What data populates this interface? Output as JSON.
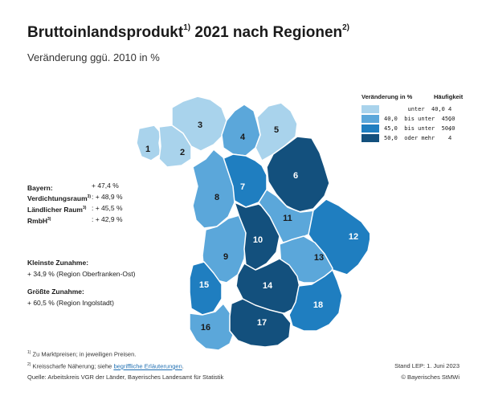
{
  "title": {
    "main": "Bruttoinlandsprodukt",
    "sup1": "1)",
    "rest": " 2021 nach Regionen",
    "sup2": "2)"
  },
  "subtitle": "Veränderung ggü. 2010 in %",
  "stats": [
    {
      "label": "Bayern:",
      "sup": "",
      "value": "+ 47,4 %"
    },
    {
      "label": "Verdichtungsraum",
      "sup": "3)",
      "value": ": + 48,9 %"
    },
    {
      "label": "Ländlicher Raum",
      "sup": "3)",
      "value": ": + 45,5 %"
    },
    {
      "label": "RmbH",
      "sup": "3)",
      "value": ": + 42,9 %"
    }
  ],
  "kleinste": {
    "heading": "Kleinste Zunahme:",
    "text": "+ 34,9 %  (Region Oberfranken-Ost)"
  },
  "groesste": {
    "heading": "Größte Zunahme:",
    "text": "+ 60,5 %  (Region Ingolstadt)"
  },
  "legend": {
    "header_change": "Veränderung in %",
    "header_count": "Häufigkeit",
    "classes": [
      {
        "label": "       unter  40,0",
        "count": "4",
        "color": "#a9d3ec"
      },
      {
        "label": "40,0  bis unter  45,0",
        "count": "6",
        "color": "#5ba7da"
      },
      {
        "label": "45,0  bis unter  50,0",
        "count": "4",
        "color": "#1f7ec0"
      },
      {
        "label": "50,0  oder mehr",
        "count": "4",
        "color": "#13507d"
      }
    ]
  },
  "colors": {
    "c1": "#a9d3ec",
    "c2": "#5ba7da",
    "c3": "#1f7ec0",
    "c4": "#13507d"
  },
  "regions": [
    {
      "number": "1",
      "class": "c1"
    },
    {
      "number": "2",
      "class": "c1"
    },
    {
      "number": "3",
      "class": "c1"
    },
    {
      "number": "4",
      "class": "c2"
    },
    {
      "number": "5",
      "class": "c1"
    },
    {
      "number": "6",
      "class": "c4"
    },
    {
      "number": "7",
      "class": "c3"
    },
    {
      "number": "8",
      "class": "c2"
    },
    {
      "number": "9",
      "class": "c2"
    },
    {
      "number": "10",
      "class": "c4"
    },
    {
      "number": "11",
      "class": "c2"
    },
    {
      "number": "12",
      "class": "c3"
    },
    {
      "number": "13",
      "class": "c2"
    },
    {
      "number": "14",
      "class": "c4"
    },
    {
      "number": "15",
      "class": "c3"
    },
    {
      "number": "16",
      "class": "c2"
    },
    {
      "number": "17",
      "class": "c4"
    },
    {
      "number": "18",
      "class": "c3"
    }
  ],
  "footnotes": {
    "f1_sup": "1)",
    "f1_text": " Zu Marktpreisen; in jeweiligen Preisen.",
    "f2_sup": "2)",
    "f2_text": " Kreisscharfe Näherung; siehe ",
    "f2_link": "begriffliche Erläuterungen",
    "f2_end": ".",
    "source": "Quelle: Arbeitskreis VGR der Länder, Bayerisches Landesamt für Statistik",
    "stand": "Stand LEP: 1. Juni 2023",
    "copyright": "© Bayerisches StMWi"
  }
}
